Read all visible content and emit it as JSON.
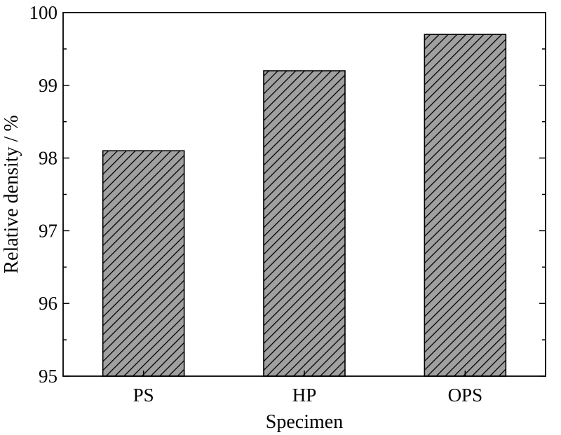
{
  "chart_data": {
    "type": "bar",
    "categories": [
      "PS",
      "HP",
      "OPS"
    ],
    "values": [
      98.1,
      99.2,
      99.7
    ],
    "xlabel": "Specimen",
    "ylabel": "Relative density / %",
    "ylim": [
      95,
      100
    ],
    "yticks": [
      95,
      96,
      97,
      98,
      99,
      100
    ],
    "grid": false,
    "bar_fill": "#a0a0a0",
    "hatch": "diagonal-lines",
    "axis_color": "#000000"
  }
}
